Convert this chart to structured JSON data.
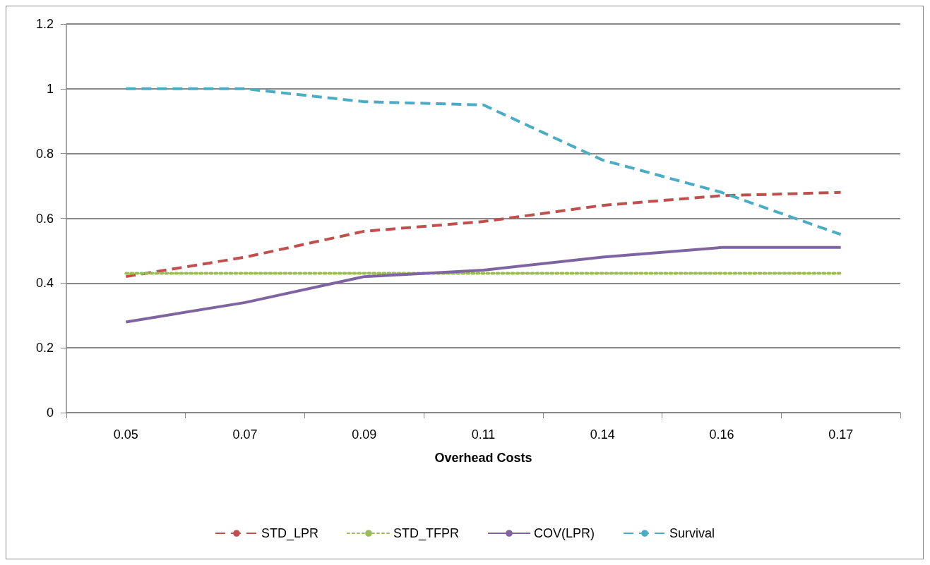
{
  "chart_data": {
    "type": "line",
    "xlabel": "Overhead Costs",
    "categories": [
      "0.05",
      "0.07",
      "0.09",
      "0.11",
      "0.14",
      "0.16",
      "0.17"
    ],
    "series": [
      {
        "name": "STD_LPR",
        "color": "#c0504d",
        "line_style": "dashed",
        "values": [
          0.42,
          0.48,
          0.56,
          0.59,
          0.64,
          0.67,
          0.68
        ]
      },
      {
        "name": "STD_TFPR",
        "color": "#9bbb59",
        "line_style": "dotted",
        "values": [
          0.43,
          0.43,
          0.43,
          0.43,
          0.43,
          0.43,
          0.43
        ]
      },
      {
        "name": "COV(LPR)",
        "color": "#8064a2",
        "line_style": "solid",
        "values": [
          0.28,
          0.34,
          0.42,
          0.44,
          0.48,
          0.51,
          0.51
        ]
      },
      {
        "name": "Survival",
        "color": "#4bacc6",
        "line_style": "dashed",
        "values": [
          1.0,
          1.0,
          0.96,
          0.95,
          0.78,
          0.68,
          0.55
        ]
      }
    ],
    "ylim": [
      0,
      1.2
    ],
    "yticks": [
      0,
      0.2,
      0.4,
      0.6,
      0.8,
      1,
      1.2
    ],
    "grid": "y",
    "legend": "bottom",
    "marker": "none"
  }
}
